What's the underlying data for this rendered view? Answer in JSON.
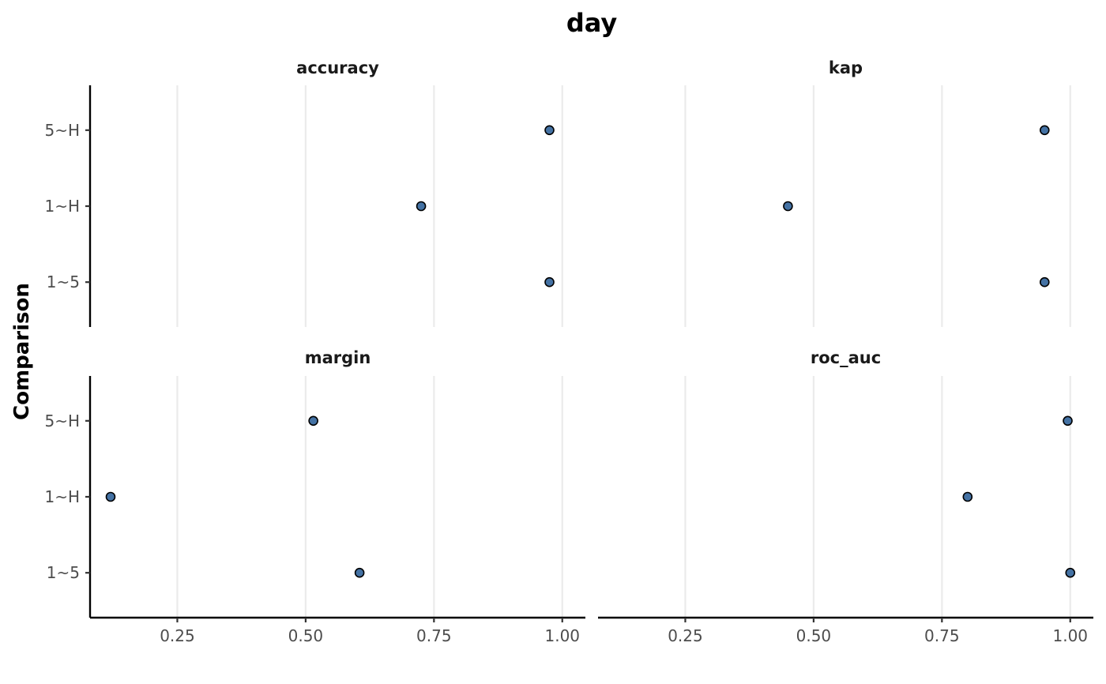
{
  "chart_data": {
    "type": "scatter",
    "title": "day",
    "ylabel": "Comparison",
    "xlabel": "",
    "categories": [
      "1~5",
      "1~H",
      "5~H"
    ],
    "x_ticks": [
      0.25,
      0.5,
      0.75,
      1.0
    ],
    "x_tick_labels": [
      "0.25",
      "0.50",
      "0.75",
      "1.00"
    ],
    "x_range": [
      0.08,
      1.045
    ],
    "grid": "vertical-major",
    "point_color": "#4472A4",
    "panels": [
      {
        "label": "accuracy",
        "points": [
          {
            "y": "5~H",
            "x": 0.975
          },
          {
            "y": "1~H",
            "x": 0.725
          },
          {
            "y": "1~5",
            "x": 0.975
          }
        ]
      },
      {
        "label": "kap",
        "points": [
          {
            "y": "5~H",
            "x": 0.95
          },
          {
            "y": "1~H",
            "x": 0.45
          },
          {
            "y": "1~5",
            "x": 0.95
          }
        ]
      },
      {
        "label": "margin",
        "points": [
          {
            "y": "5~H",
            "x": 0.515
          },
          {
            "y": "1~H",
            "x": 0.12
          },
          {
            "y": "1~5",
            "x": 0.605
          }
        ]
      },
      {
        "label": "roc_auc",
        "points": [
          {
            "y": "5~H",
            "x": 0.995
          },
          {
            "y": "1~H",
            "x": 0.8
          },
          {
            "y": "1~5",
            "x": 1.0
          }
        ]
      }
    ]
  }
}
